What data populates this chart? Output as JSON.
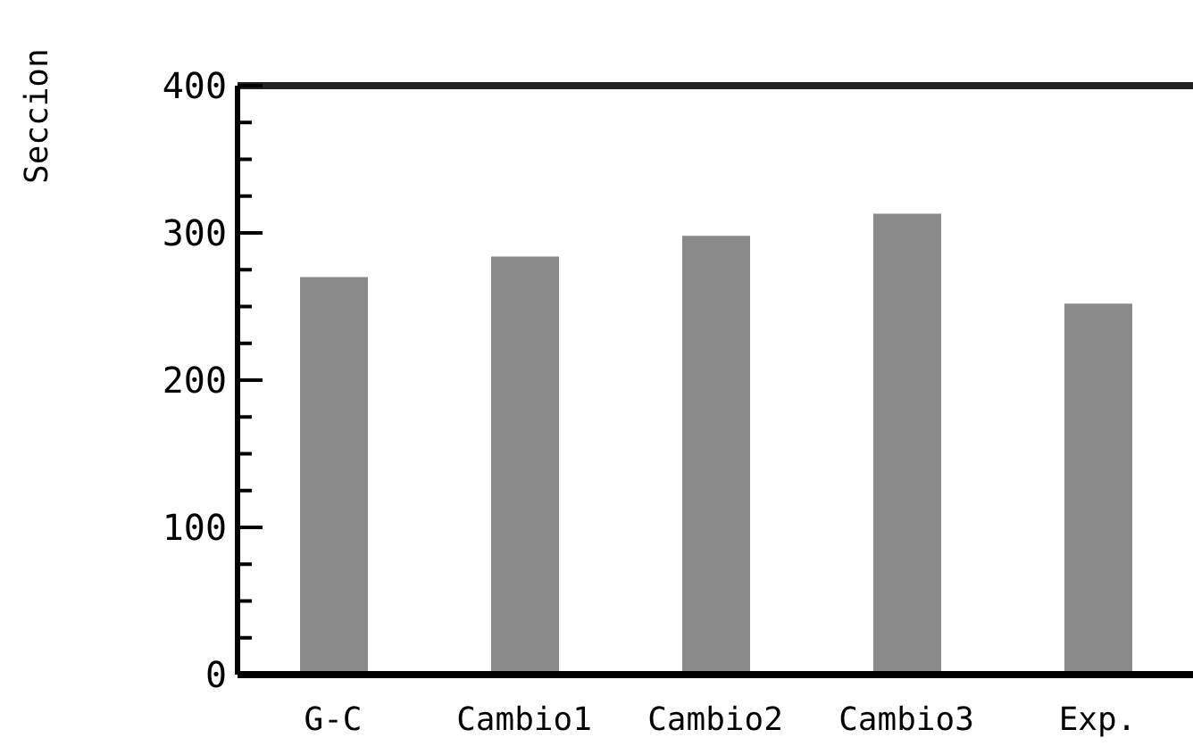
{
  "chart_data": {
    "type": "bar",
    "ylabel": "Seccion",
    "categories": [
      "G-C",
      "Cambio1",
      "Cambio2",
      "Cambio3",
      "Exp."
    ],
    "values": [
      270,
      284,
      298,
      313,
      252
    ],
    "color": "#8a8a8a",
    "ylim": [
      0,
      400
    ],
    "yticks": [
      0,
      {
        "value": 25,
        "label": null
      },
      {
        "value": 50,
        "label": null
      },
      {
        "value": 75,
        "label": null
      },
      100,
      {
        "value": 125,
        "label": null
      },
      {
        "value": 150,
        "label": null
      },
      {
        "value": 175,
        "label": null
      },
      200,
      {
        "value": 225,
        "label": null
      },
      {
        "value": 250,
        "label": null
      },
      {
        "value": 275,
        "label": null
      },
      300,
      {
        "value": 325,
        "label": null
      },
      {
        "value": 350,
        "label": null
      },
      {
        "value": 375,
        "label": null
      },
      400
    ],
    "grid": false
  }
}
